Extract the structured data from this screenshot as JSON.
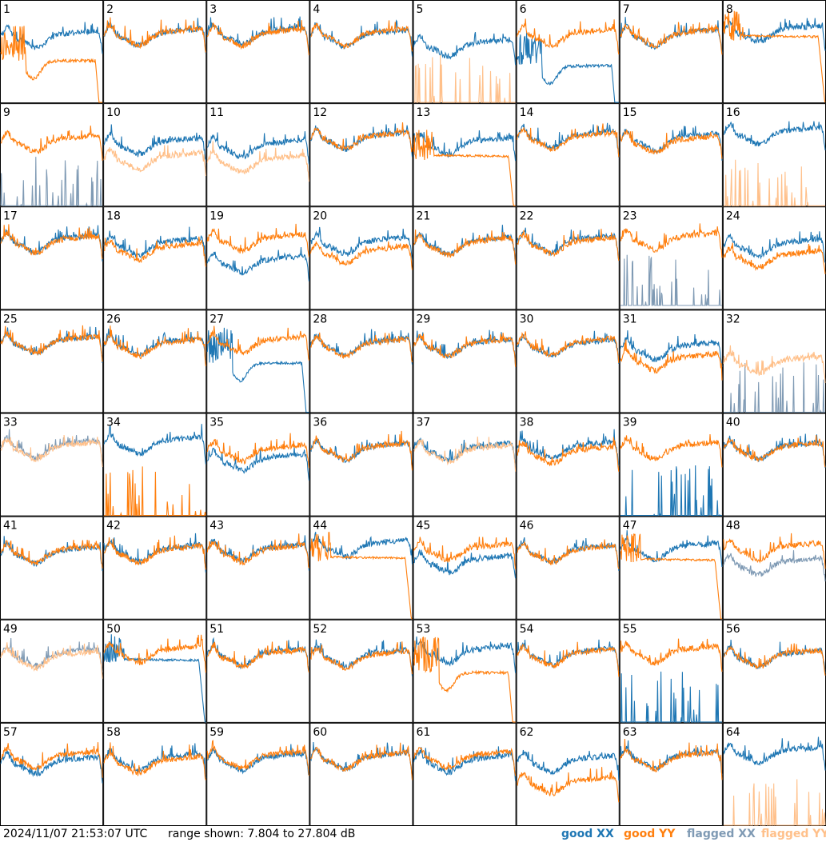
{
  "chart_data": {
    "type": "line",
    "panels_grid": {
      "columns": 8,
      "rows": 8
    },
    "panel_labels": [
      "1",
      "2",
      "3",
      "4",
      "5",
      "6",
      "7",
      "8",
      "9",
      "10",
      "11",
      "12",
      "13",
      "14",
      "15",
      "16",
      "17",
      "18",
      "19",
      "20",
      "21",
      "22",
      "23",
      "24",
      "25",
      "26",
      "27",
      "28",
      "29",
      "30",
      "31",
      "32",
      "33",
      "34",
      "35",
      "36",
      "37",
      "38",
      "39",
      "40",
      "41",
      "42",
      "43",
      "44",
      "45",
      "46",
      "47",
      "48",
      "49",
      "50",
      "51",
      "52",
      "53",
      "54",
      "55",
      "56",
      "57",
      "58",
      "59",
      "60",
      "61",
      "62",
      "63",
      "64"
    ],
    "x_domain": [
      0,
      1
    ],
    "ylim_db": [
      7.804,
      27.804
    ],
    "series_legend": [
      {
        "name": "good XX",
        "color": "#1f77b4"
      },
      {
        "name": "good YY",
        "color": "#ff7f0e"
      },
      {
        "name": "flagged XX",
        "color": "#7f9ab4"
      },
      {
        "name": "flagged YY",
        "color": "#ffc08a"
      }
    ],
    "panels": [
      {
        "id": 1,
        "xx": {
          "kind": "normal",
          "level": 20.2,
          "flagged": false
        },
        "yy": {
          "kind": "sag",
          "level": 12.5,
          "flagged": false
        }
      },
      {
        "id": 2,
        "xx": {
          "kind": "normal",
          "level": 20.6,
          "flagged": false
        },
        "yy": {
          "kind": "normal",
          "level": 20.6,
          "flagged": false
        }
      },
      {
        "id": 3,
        "xx": {
          "kind": "normal",
          "level": 20.8,
          "flagged": false
        },
        "yy": {
          "kind": "normal",
          "level": 20.5,
          "flagged": false
        }
      },
      {
        "id": 4,
        "xx": {
          "kind": "normal",
          "level": 20.4,
          "flagged": false
        },
        "yy": {
          "kind": "normal",
          "level": 20.6,
          "flagged": false
        }
      },
      {
        "id": 5,
        "xx": {
          "kind": "normal",
          "level": 18.5,
          "flagged": false
        },
        "yy": {
          "kind": "spikes",
          "level": 7.8,
          "flagged": true
        }
      },
      {
        "id": 6,
        "xx": {
          "kind": "sag",
          "level": 11.5,
          "flagged": false
        },
        "yy": {
          "kind": "normal",
          "level": 20.5,
          "flagged": false
        }
      },
      {
        "id": 7,
        "xx": {
          "kind": "normal",
          "level": 20.4,
          "flagged": false
        },
        "yy": {
          "kind": "normal",
          "level": 20.5,
          "flagged": false
        }
      },
      {
        "id": 8,
        "xx": {
          "kind": "normal",
          "level": 21.2,
          "flagged": false
        },
        "yy": {
          "kind": "flatdrop",
          "level": 21.0,
          "flagged": false
        }
      },
      {
        "id": 9,
        "xx": {
          "kind": "spikes",
          "level": 7.8,
          "flagged": true
        },
        "yy": {
          "kind": "normal",
          "level": 20.0,
          "flagged": false
        }
      },
      {
        "id": 10,
        "xx": {
          "kind": "normal",
          "level": 19.5,
          "flagged": false
        },
        "yy": {
          "kind": "normal",
          "level": 16.5,
          "flagged": true
        }
      },
      {
        "id": 11,
        "xx": {
          "kind": "normal",
          "level": 19.0,
          "flagged": false
        },
        "yy": {
          "kind": "normal",
          "level": 16.0,
          "flagged": true
        }
      },
      {
        "id": 12,
        "xx": {
          "kind": "normal",
          "level": 20.5,
          "flagged": false
        },
        "yy": {
          "kind": "normal",
          "level": 20.5,
          "flagged": false
        }
      },
      {
        "id": 13,
        "xx": {
          "kind": "normal",
          "level": 19.5,
          "flagged": false
        },
        "yy": {
          "kind": "flatdrop",
          "level": 17.8,
          "flagged": false
        }
      },
      {
        "id": 14,
        "xx": {
          "kind": "normal",
          "level": 20.8,
          "flagged": false
        },
        "yy": {
          "kind": "normal",
          "level": 20.5,
          "flagged": false
        }
      },
      {
        "id": 15,
        "xx": {
          "kind": "normal",
          "level": 20.3,
          "flagged": false
        },
        "yy": {
          "kind": "normal",
          "level": 19.8,
          "flagged": false
        }
      },
      {
        "id": 16,
        "xx": {
          "kind": "normal",
          "level": 21.5,
          "flagged": false
        },
        "yy": {
          "kind": "spikes",
          "level": 7.8,
          "flagged": true
        }
      },
      {
        "id": 17,
        "xx": {
          "kind": "normal",
          "level": 20.6,
          "flagged": false
        },
        "yy": {
          "kind": "normal",
          "level": 20.4,
          "flagged": false
        }
      },
      {
        "id": 18,
        "xx": {
          "kind": "normal",
          "level": 20.0,
          "flagged": false
        },
        "yy": {
          "kind": "normal",
          "level": 19.0,
          "flagged": false
        }
      },
      {
        "id": 19,
        "xx": {
          "kind": "normal",
          "level": 16.5,
          "flagged": false
        },
        "yy": {
          "kind": "normal",
          "level": 20.8,
          "flagged": false
        }
      },
      {
        "id": 20,
        "xx": {
          "kind": "normal",
          "level": 20.2,
          "flagged": false
        },
        "yy": {
          "kind": "normal",
          "level": 18.4,
          "flagged": false
        }
      },
      {
        "id": 21,
        "xx": {
          "kind": "normal",
          "level": 20.2,
          "flagged": false
        },
        "yy": {
          "kind": "normal",
          "level": 20.0,
          "flagged": false
        }
      },
      {
        "id": 22,
        "xx": {
          "kind": "normal",
          "level": 20.5,
          "flagged": false
        },
        "yy": {
          "kind": "normal",
          "level": 20.2,
          "flagged": false
        }
      },
      {
        "id": 23,
        "xx": {
          "kind": "spikes",
          "level": 8.5,
          "flagged": true
        },
        "yy": {
          "kind": "normal",
          "level": 21.0,
          "flagged": false
        }
      },
      {
        "id": 24,
        "xx": {
          "kind": "normal",
          "level": 19.8,
          "flagged": false
        },
        "yy": {
          "kind": "normal",
          "level": 17.5,
          "flagged": false
        }
      },
      {
        "id": 25,
        "xx": {
          "kind": "normal",
          "level": 21.0,
          "flagged": false
        },
        "yy": {
          "kind": "normal",
          "level": 21.0,
          "flagged": false
        }
      },
      {
        "id": 26,
        "xx": {
          "kind": "normal",
          "level": 20.6,
          "flagged": false
        },
        "yy": {
          "kind": "normal",
          "level": 20.4,
          "flagged": false
        }
      },
      {
        "id": 27,
        "xx": {
          "kind": "sag",
          "level": 14.0,
          "flagged": false
        },
        "yy": {
          "kind": "normal",
          "level": 21.0,
          "flagged": false
        }
      },
      {
        "id": 28,
        "xx": {
          "kind": "normal",
          "level": 20.6,
          "flagged": false
        },
        "yy": {
          "kind": "normal",
          "level": 20.4,
          "flagged": false
        }
      },
      {
        "id": 29,
        "xx": {
          "kind": "normal",
          "level": 20.4,
          "flagged": false
        },
        "yy": {
          "kind": "normal",
          "level": 20.4,
          "flagged": false
        }
      },
      {
        "id": 30,
        "xx": {
          "kind": "normal",
          "level": 20.4,
          "flagged": false
        },
        "yy": {
          "kind": "normal",
          "level": 20.6,
          "flagged": false
        }
      },
      {
        "id": 31,
        "xx": {
          "kind": "normal",
          "level": 19.8,
          "flagged": false
        },
        "yy": {
          "kind": "normal",
          "level": 17.6,
          "flagged": false
        }
      },
      {
        "id": 32,
        "xx": {
          "kind": "spikes",
          "level": 7.8,
          "flagged": true
        },
        "yy": {
          "kind": "normal",
          "level": 17.0,
          "flagged": true
        }
      },
      {
        "id": 33,
        "xx": {
          "kind": "normal",
          "level": 20.8,
          "flagged": true
        },
        "yy": {
          "kind": "normal",
          "level": 20.5,
          "flagged": true
        }
      },
      {
        "id": 34,
        "xx": {
          "kind": "normal",
          "level": 21.5,
          "flagged": false
        },
        "yy": {
          "kind": "spikes",
          "level": 7.8,
          "flagged": false
        }
      },
      {
        "id": 35,
        "xx": {
          "kind": "normal",
          "level": 18.2,
          "flagged": false
        },
        "yy": {
          "kind": "normal",
          "level": 20.0,
          "flagged": false
        }
      },
      {
        "id": 36,
        "xx": {
          "kind": "normal",
          "level": 20.3,
          "flagged": false
        },
        "yy": {
          "kind": "normal",
          "level": 20.3,
          "flagged": false
        }
      },
      {
        "id": 37,
        "xx": {
          "kind": "normal",
          "level": 20.3,
          "flagged": false
        },
        "yy": {
          "kind": "normal",
          "level": 20.0,
          "flagged": true
        }
      },
      {
        "id": 38,
        "xx": {
          "kind": "normal",
          "level": 20.6,
          "flagged": false
        },
        "yy": {
          "kind": "normal",
          "level": 19.6,
          "flagged": false
        }
      },
      {
        "id": 39,
        "xx": {
          "kind": "spikes",
          "level": 7.8,
          "flagged": false
        },
        "yy": {
          "kind": "normal",
          "level": 20.5,
          "flagged": false
        }
      },
      {
        "id": 40,
        "xx": {
          "kind": "normal",
          "level": 20.4,
          "flagged": false
        },
        "yy": {
          "kind": "normal",
          "level": 20.4,
          "flagged": false
        }
      },
      {
        "id": 41,
        "xx": {
          "kind": "normal",
          "level": 20.2,
          "flagged": false
        },
        "yy": {
          "kind": "normal",
          "level": 20.4,
          "flagged": false
        }
      },
      {
        "id": 42,
        "xx": {
          "kind": "normal",
          "level": 20.6,
          "flagged": false
        },
        "yy": {
          "kind": "normal",
          "level": 20.4,
          "flagged": false
        }
      },
      {
        "id": 43,
        "xx": {
          "kind": "normal",
          "level": 20.8,
          "flagged": false
        },
        "yy": {
          "kind": "normal",
          "level": 20.5,
          "flagged": false
        }
      },
      {
        "id": 44,
        "xx": {
          "kind": "normal",
          "level": 21.5,
          "flagged": false
        },
        "yy": {
          "kind": "flatdrop",
          "level": 20.0,
          "flagged": false
        }
      },
      {
        "id": 45,
        "xx": {
          "kind": "normal",
          "level": 18.5,
          "flagged": false
        },
        "yy": {
          "kind": "normal",
          "level": 20.8,
          "flagged": false
        }
      },
      {
        "id": 46,
        "xx": {
          "kind": "normal",
          "level": 20.6,
          "flagged": false
        },
        "yy": {
          "kind": "normal",
          "level": 20.4,
          "flagged": false
        }
      },
      {
        "id": 47,
        "xx": {
          "kind": "normal",
          "level": 21.0,
          "flagged": false
        },
        "yy": {
          "kind": "flatdrop",
          "level": 19.6,
          "flagged": false
        }
      },
      {
        "id": 48,
        "xx": {
          "kind": "normal",
          "level": 18.0,
          "flagged": true
        },
        "yy": {
          "kind": "normal",
          "level": 21.0,
          "flagged": false
        }
      },
      {
        "id": 49,
        "xx": {
          "kind": "normal",
          "level": 20.4,
          "flagged": true
        },
        "yy": {
          "kind": "normal",
          "level": 20.0,
          "flagged": true
        }
      },
      {
        "id": 50,
        "xx": {
          "kind": "flatdrop",
          "level": 20.2,
          "flagged": false
        },
        "yy": {
          "kind": "normal",
          "level": 21.0,
          "flagged": false
        }
      },
      {
        "id": 51,
        "xx": {
          "kind": "normal",
          "level": 20.5,
          "flagged": false
        },
        "yy": {
          "kind": "normal",
          "level": 20.3,
          "flagged": false
        }
      },
      {
        "id": 52,
        "xx": {
          "kind": "normal",
          "level": 20.3,
          "flagged": false
        },
        "yy": {
          "kind": "normal",
          "level": 20.0,
          "flagged": false
        }
      },
      {
        "id": 53,
        "xx": {
          "kind": "normal",
          "level": 21.0,
          "flagged": false
        },
        "yy": {
          "kind": "sag",
          "level": 14.0,
          "flagged": false
        }
      },
      {
        "id": 54,
        "xx": {
          "kind": "normal",
          "level": 20.6,
          "flagged": false
        },
        "yy": {
          "kind": "normal",
          "level": 20.4,
          "flagged": false
        }
      },
      {
        "id": 55,
        "xx": {
          "kind": "spikes",
          "level": 7.8,
          "flagged": false
        },
        "yy": {
          "kind": "normal",
          "level": 21.0,
          "flagged": false
        }
      },
      {
        "id": 56,
        "xx": {
          "kind": "normal",
          "level": 20.2,
          "flagged": false
        },
        "yy": {
          "kind": "normal",
          "level": 20.2,
          "flagged": false
        }
      },
      {
        "id": 57,
        "xx": {
          "kind": "normal",
          "level": 19.5,
          "flagged": false
        },
        "yy": {
          "kind": "normal",
          "level": 20.6,
          "flagged": false
        }
      },
      {
        "id": 58,
        "xx": {
          "kind": "normal",
          "level": 20.2,
          "flagged": false
        },
        "yy": {
          "kind": "normal",
          "level": 19.6,
          "flagged": false
        }
      },
      {
        "id": 59,
        "xx": {
          "kind": "normal",
          "level": 20.2,
          "flagged": false
        },
        "yy": {
          "kind": "normal",
          "level": 20.6,
          "flagged": false
        }
      },
      {
        "id": 60,
        "xx": {
          "kind": "normal",
          "level": 20.4,
          "flagged": false
        },
        "yy": {
          "kind": "normal",
          "level": 20.4,
          "flagged": false
        }
      },
      {
        "id": 61,
        "xx": {
          "kind": "normal",
          "level": 19.8,
          "flagged": false
        },
        "yy": {
          "kind": "normal",
          "level": 20.6,
          "flagged": false
        }
      },
      {
        "id": 62,
        "xx": {
          "kind": "normal",
          "level": 19.8,
          "flagged": false
        },
        "yy": {
          "kind": "normal",
          "level": 15.6,
          "flagged": false
        }
      },
      {
        "id": 63,
        "xx": {
          "kind": "normal",
          "level": 20.6,
          "flagged": false
        },
        "yy": {
          "kind": "normal",
          "level": 20.4,
          "flagged": false
        }
      },
      {
        "id": 64,
        "xx": {
          "kind": "normal",
          "level": 21.5,
          "flagged": false
        },
        "yy": {
          "kind": "spikes",
          "level": 7.8,
          "flagged": true
        }
      }
    ]
  },
  "footer": {
    "timestamp": "2024/11/07 21:53:07 UTC",
    "range_text": "range shown: 7.804 to 27.804 dB",
    "legend": {
      "good_xx": "good XX",
      "good_yy": "good YY",
      "flagged_xx": "flagged XX",
      "flagged_yy": "flagged YY"
    }
  }
}
